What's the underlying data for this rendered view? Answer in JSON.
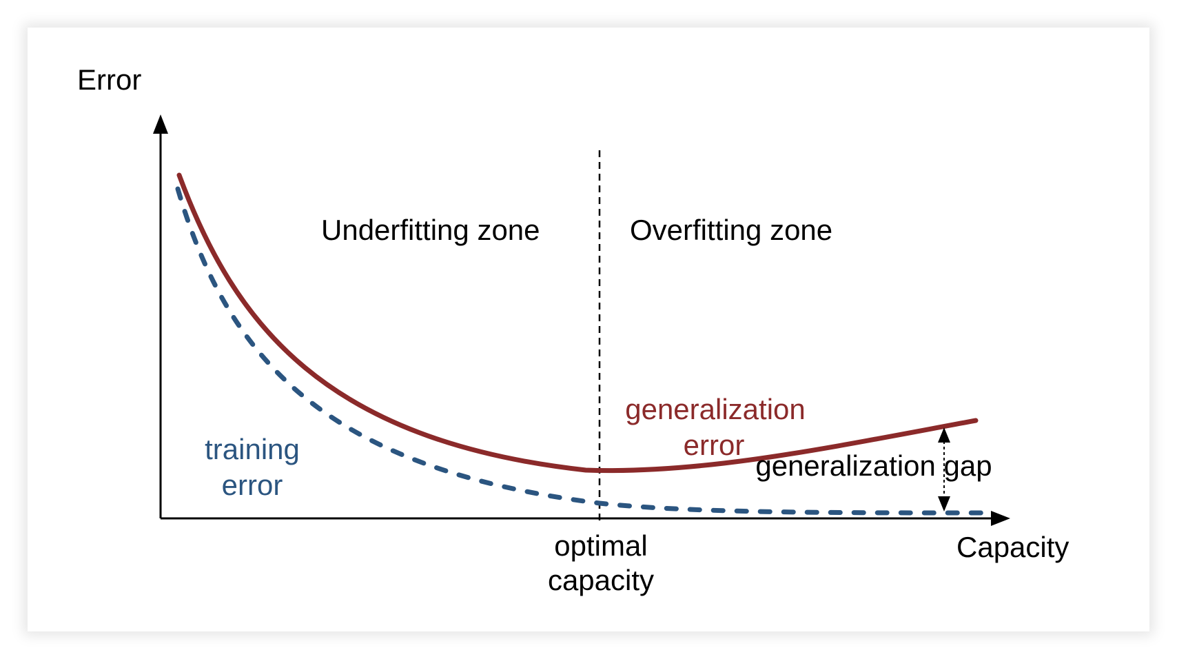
{
  "diagram": {
    "y_axis_label": "Error",
    "x_axis_label": "Capacity",
    "underfitting_label": "Underfitting zone",
    "overfitting_label": "Overfitting zone",
    "training_error_line1": "training",
    "training_error_line2": "error",
    "generalization_error_line1": "generalization",
    "generalization_error_line2": "error",
    "generalization_gap_label": "generalization gap",
    "optimal_capacity_line1": "optimal",
    "optimal_capacity_line2": "capacity"
  },
  "colors": {
    "generalization_curve": "#8b2a2a",
    "training_curve": "#2b5580",
    "axis": "#000000",
    "text": "#000000"
  }
}
